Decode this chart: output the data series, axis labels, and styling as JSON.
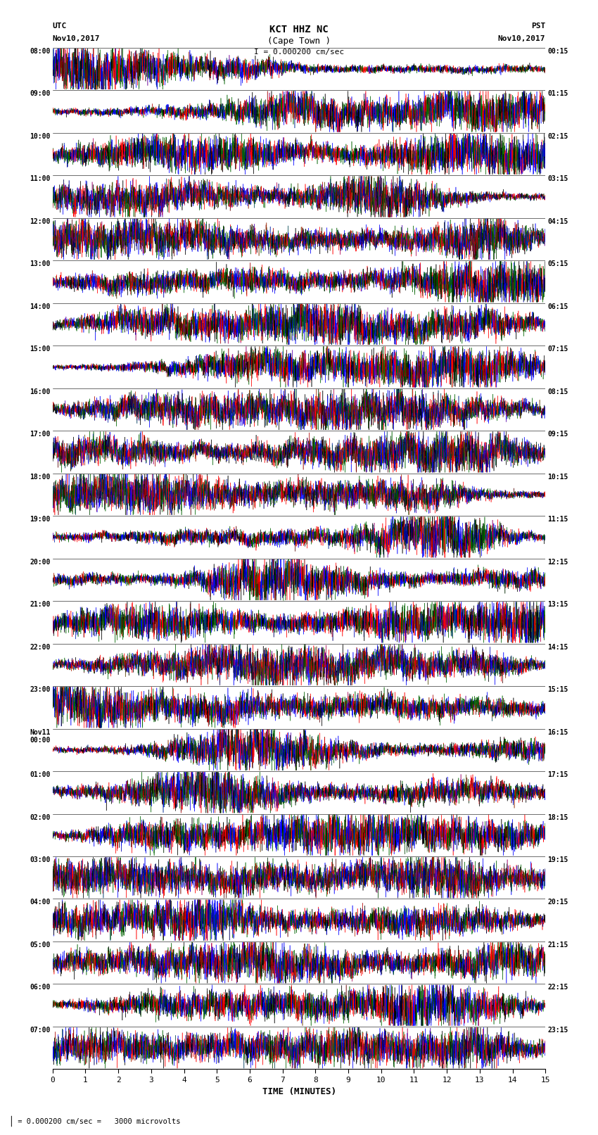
{
  "title_line1": "KCT HHZ NC",
  "title_line2": "(Cape Town )",
  "scale_text": "I = 0.000200 cm/sec",
  "left_label_line1": "UTC",
  "left_label_line2": "Nov10,2017",
  "right_label_line1": "PST",
  "right_label_line2": "Nov10,2017",
  "bottom_label": "TIME (MINUTES)",
  "footnote": " = 0.000200 cm/sec =   3000 microvolts",
  "utc_times": [
    "08:00",
    "09:00",
    "10:00",
    "11:00",
    "12:00",
    "13:00",
    "14:00",
    "15:00",
    "16:00",
    "17:00",
    "18:00",
    "19:00",
    "20:00",
    "21:00",
    "22:00",
    "23:00",
    "Nov11\n00:00",
    "01:00",
    "02:00",
    "03:00",
    "04:00",
    "05:00",
    "06:00",
    "07:00"
  ],
  "pst_times": [
    "00:15",
    "01:15",
    "02:15",
    "03:15",
    "04:15",
    "05:15",
    "06:15",
    "07:15",
    "08:15",
    "09:15",
    "10:15",
    "11:15",
    "12:15",
    "13:15",
    "14:15",
    "15:15",
    "16:15",
    "17:15",
    "18:15",
    "19:15",
    "20:15",
    "21:15",
    "22:15",
    "23:15"
  ],
  "n_rows": 24,
  "n_minutes": 15,
  "colors": [
    "#0000ff",
    "#ff0000",
    "#006400",
    "#000000"
  ],
  "background_color": "#ffffff",
  "plot_bg_color": "#ffffff",
  "seed": 42,
  "samples_per_minute": 600,
  "amplitude": 0.48,
  "linewidth": 0.4
}
